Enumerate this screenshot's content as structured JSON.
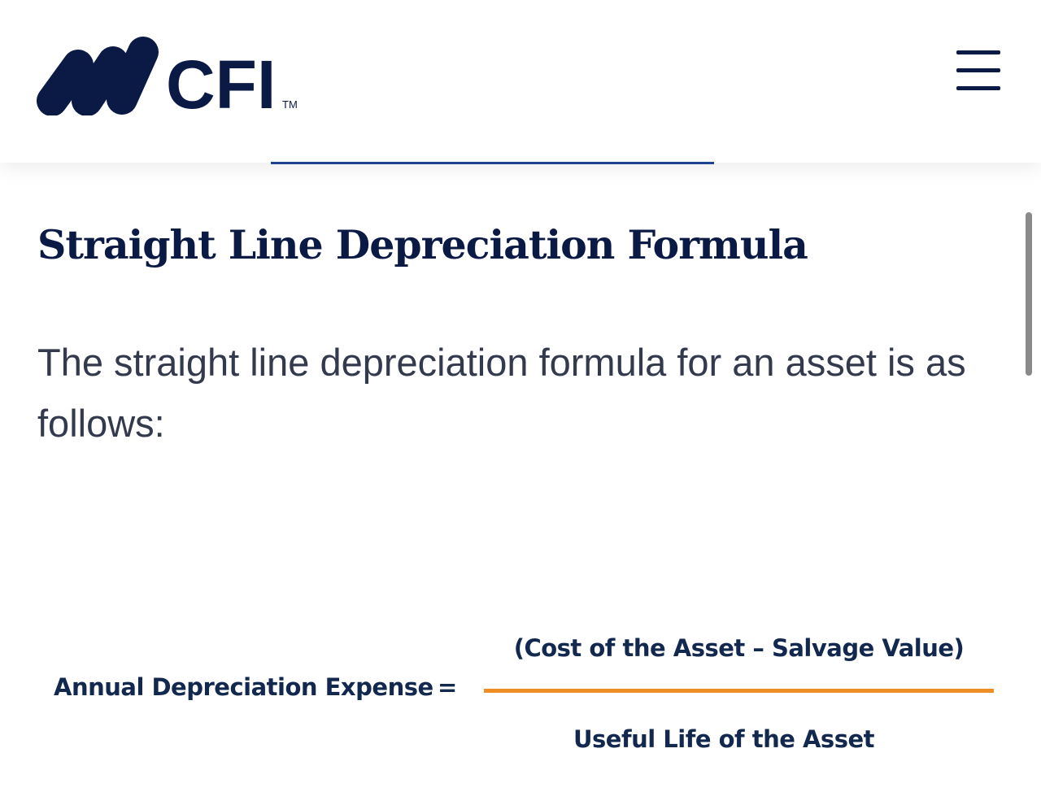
{
  "header": {
    "logo_text": "CFI",
    "logo_tm": "TM",
    "menu_icon": "hamburger-menu-icon",
    "reading_progress_color": "#1d4391"
  },
  "article": {
    "title": "Straight Line Depreciation Formula",
    "intro": "The straight line depreciation formula for an asset is as follows:"
  },
  "formula": {
    "lhs": "Annual Depreciation Expense",
    "equals": "=",
    "numerator": "(Cost of the Asset – Salvage Value)",
    "denominator": "Useful Life of the Asset",
    "fraction_bar_color": "#ed8f24"
  }
}
